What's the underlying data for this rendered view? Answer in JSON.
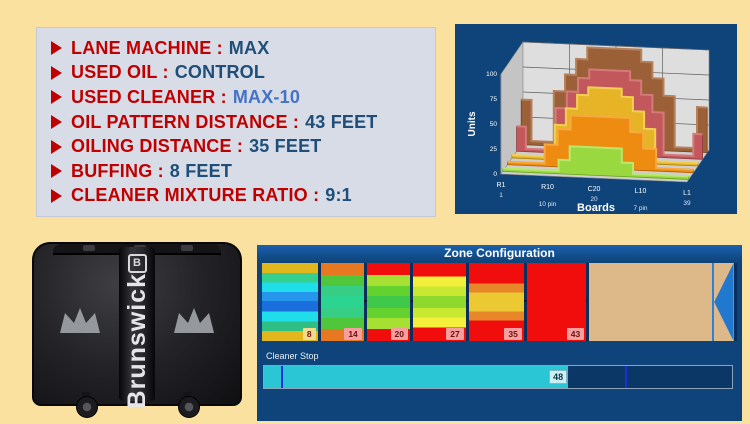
{
  "page": {
    "background": "#fbe1a0"
  },
  "specs": {
    "label_color": "#c00000",
    "value_color": "#1f4e79",
    "items": [
      {
        "label": "LANE MACHINE :",
        "value": "MAX"
      },
      {
        "label": "USED OIL :",
        "value": "CONTROL"
      },
      {
        "label": "USED CLEANER :",
        "value": "MAX-10",
        "value_color": "#4472c4"
      },
      {
        "label": "OIL PATTERN DISTANCE :",
        "value": "43 FEET"
      },
      {
        "label": "OILING DISTANCE :",
        "value": "35 FEET"
      },
      {
        "label": "BUFFING :",
        "value": "8 FEET"
      },
      {
        "label": "CLEANER MIXTURE RATIO :",
        "value": "9:1"
      }
    ]
  },
  "machine": {
    "brand": "Brunswick",
    "logo_letter": "B"
  },
  "chart_data": {
    "type": "area",
    "projection": "3d-ridge",
    "title": "",
    "xlabel": "Boards",
    "ylabel": "Units",
    "ylim": [
      0,
      100
    ],
    "yticks": [
      0,
      25,
      50,
      75,
      100
    ],
    "grid": true,
    "legend": false,
    "xticks": [
      {
        "u": 0.0,
        "label": "R1",
        "sub": "1",
        "sub_row": 1
      },
      {
        "u": 0.25,
        "label": "R10",
        "sub": "10 pin",
        "sub_row": 2
      },
      {
        "u": 0.5,
        "label": "C20",
        "sub": "20",
        "sub_row": 1
      },
      {
        "u": 0.75,
        "label": "L10",
        "sub": "7 pin",
        "sub_row": 2
      },
      {
        "u": 1.0,
        "label": "L1",
        "sub": "39",
        "sub_row": 1
      }
    ],
    "series": [
      {
        "name": "layer-back-brown",
        "fill": "#9c6038",
        "top": "#b5805a",
        "edge": "#6f431f",
        "profile": [
          [
            0,
            45
          ],
          [
            0.055,
            45
          ],
          [
            0.055,
            4
          ],
          [
            0.175,
            4
          ],
          [
            0.175,
            55
          ],
          [
            0.235,
            55
          ],
          [
            0.235,
            72
          ],
          [
            0.295,
            72
          ],
          [
            0.295,
            88
          ],
          [
            0.355,
            88
          ],
          [
            0.355,
            100
          ],
          [
            0.645,
            100
          ],
          [
            0.645,
            88
          ],
          [
            0.705,
            88
          ],
          [
            0.705,
            72
          ],
          [
            0.765,
            72
          ],
          [
            0.765,
            55
          ],
          [
            0.825,
            55
          ],
          [
            0.825,
            4
          ],
          [
            0.945,
            4
          ],
          [
            0.945,
            45
          ],
          [
            1,
            45
          ]
        ]
      },
      {
        "name": "layer-red",
        "fill": "#c2585c",
        "top": "#d47a7a",
        "edge": "#8e3a3e",
        "profile": [
          [
            0,
            25
          ],
          [
            0.05,
            25
          ],
          [
            0.05,
            3
          ],
          [
            0.21,
            3
          ],
          [
            0.21,
            45
          ],
          [
            0.27,
            45
          ],
          [
            0.27,
            62
          ],
          [
            0.33,
            62
          ],
          [
            0.33,
            76
          ],
          [
            0.39,
            76
          ],
          [
            0.39,
            85
          ],
          [
            0.61,
            85
          ],
          [
            0.61,
            76
          ],
          [
            0.67,
            76
          ],
          [
            0.67,
            62
          ],
          [
            0.73,
            62
          ],
          [
            0.73,
            45
          ],
          [
            0.79,
            45
          ],
          [
            0.79,
            3
          ],
          [
            0.95,
            3
          ],
          [
            0.95,
            25
          ],
          [
            1,
            25
          ]
        ]
      },
      {
        "name": "layer-yellow",
        "fill": "#e6b426",
        "top": "#f2cf55",
        "edge": "#a87f0a",
        "profile": [
          [
            0,
            3
          ],
          [
            0.23,
            3
          ],
          [
            0.23,
            35
          ],
          [
            0.29,
            35
          ],
          [
            0.29,
            52
          ],
          [
            0.35,
            52
          ],
          [
            0.35,
            66
          ],
          [
            0.41,
            66
          ],
          [
            0.41,
            74
          ],
          [
            0.59,
            74
          ],
          [
            0.59,
            66
          ],
          [
            0.65,
            66
          ],
          [
            0.65,
            52
          ],
          [
            0.71,
            52
          ],
          [
            0.71,
            35
          ],
          [
            0.77,
            35
          ],
          [
            0.77,
            3
          ],
          [
            1,
            3
          ]
        ]
      },
      {
        "name": "layer-orange",
        "fill": "#ee8c12",
        "top": "#f7a93f",
        "edge": "#b05f04",
        "profile": [
          [
            0,
            3
          ],
          [
            0.2,
            3
          ],
          [
            0.2,
            22
          ],
          [
            0.27,
            22
          ],
          [
            0.27,
            38
          ],
          [
            0.34,
            38
          ],
          [
            0.34,
            52
          ],
          [
            0.66,
            52
          ],
          [
            0.66,
            38
          ],
          [
            0.73,
            38
          ],
          [
            0.73,
            22
          ],
          [
            0.8,
            22
          ],
          [
            0.8,
            3
          ],
          [
            1,
            3
          ]
        ]
      },
      {
        "name": "layer-front-green",
        "fill": "#99d83e",
        "top": "#b8e96c",
        "edge": "#63a318",
        "profile": [
          [
            0,
            3
          ],
          [
            0.3,
            3
          ],
          [
            0.3,
            14
          ],
          [
            0.36,
            14
          ],
          [
            0.36,
            28
          ],
          [
            0.64,
            28
          ],
          [
            0.64,
            14
          ],
          [
            0.7,
            14
          ],
          [
            0.7,
            3
          ],
          [
            1,
            3
          ]
        ]
      }
    ]
  },
  "zone_config": {
    "title": "Zone Configuration",
    "dash_color": "#161616",
    "zones": [
      {
        "kind": "zone",
        "width_pct": 11.7,
        "gap": 0,
        "tag": {
          "text": "8",
          "bg": "#f2dc8c"
        },
        "bands": [
          [
            "#e2b71e",
            13
          ],
          [
            "#35cf8e",
            12
          ],
          [
            "#1fdde9",
            12
          ],
          [
            "#2596ec",
            12
          ],
          [
            "#1b6fdd",
            13
          ],
          [
            "#1fdde9",
            13
          ],
          [
            "#2fbf85",
            12
          ],
          [
            "#e2b71e",
            13
          ]
        ]
      },
      {
        "kind": "zone",
        "width_pct": 9.1,
        "gap": 3,
        "tag": {
          "text": "14",
          "bg": "#f79f9f"
        },
        "bands": [
          [
            "#e87722",
            14
          ],
          [
            "#50c63a",
            13
          ],
          [
            "#36cd85",
            12
          ],
          [
            "#2bd591",
            14
          ],
          [
            "#36cd85",
            12
          ],
          [
            "#50c63a",
            13
          ],
          [
            "#e87722",
            14
          ]
        ]
      },
      {
        "kind": "zone",
        "width_pct": 9.1,
        "gap": 3,
        "tag": {
          "text": "20",
          "bg": "#f79f9f"
        },
        "bands": [
          [
            "#f20d0d",
            14
          ],
          [
            "#a5e032",
            13
          ],
          [
            "#64d22e",
            12
          ],
          [
            "#3fc84a",
            14
          ],
          [
            "#64d22e",
            12
          ],
          [
            "#a5e032",
            13
          ],
          [
            "#f20d0d",
            14
          ]
        ]
      },
      {
        "kind": "zone",
        "width_pct": 11.1,
        "gap": 3,
        "tag": {
          "text": "27",
          "bg": "#f79f9f"
        },
        "bands": [
          [
            "#f20d0d",
            16
          ],
          [
            "#f3ef3a",
            12
          ],
          [
            "#c9e832",
            11
          ],
          [
            "#8fd92f",
            14
          ],
          [
            "#c9e832",
            11
          ],
          [
            "#f3ef3a",
            12
          ],
          [
            "#f20d0d",
            16
          ]
        ]
      },
      {
        "kind": "zone",
        "width_pct": 11.6,
        "gap": 3,
        "tag": {
          "text": "35",
          "bg": "#f79f9f"
        },
        "bands": [
          [
            "#f20d0d",
            24
          ],
          [
            "#e8862a",
            11
          ],
          [
            "#ecc832",
            22
          ],
          [
            "#e8862a",
            11
          ],
          [
            "#f20d0d",
            24
          ]
        ]
      },
      {
        "kind": "zone",
        "width_pct": 12.5,
        "gap": 3,
        "tag": {
          "text": "43",
          "bg": "#f79f9f"
        },
        "bands": [
          [
            "#f20d0d",
            100
          ]
        ]
      },
      {
        "kind": "buffer",
        "width_pct": 25.9,
        "gap": 3,
        "bands": [
          [
            "#ddb888",
            100
          ]
        ]
      },
      {
        "kind": "arrow",
        "width_pct": 4.5,
        "gap": 0,
        "divider_color": "#2f80d6",
        "bg": "#ddb888",
        "arrow_color": "#2178cf"
      }
    ],
    "cleaner_stop": {
      "label": "Cleaner Stop",
      "value": "48",
      "fill_percent": 65,
      "fill_color": "#2ac6d6",
      "markers_percent": [
        3.6,
        77.2
      ],
      "marker_color": "#1b2fd8"
    }
  }
}
